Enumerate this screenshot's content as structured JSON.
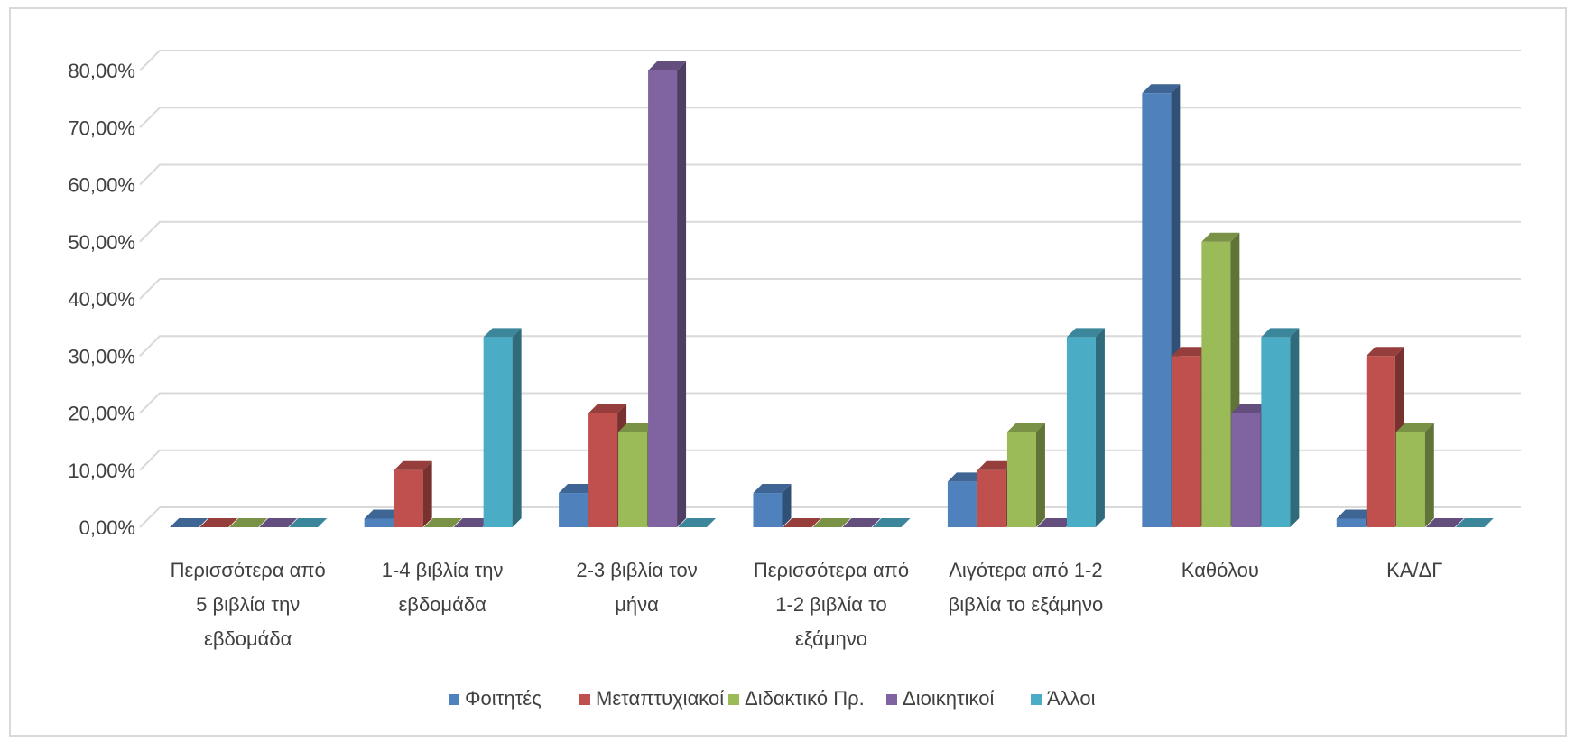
{
  "chart_data": {
    "type": "bar",
    "title": "",
    "xlabel": "",
    "ylabel": "",
    "ylim": [
      0,
      0.8
    ],
    "y_tick_labels": [
      "0,00%",
      "10,00%",
      "20,00%",
      "30,00%",
      "40,00%",
      "50,00%",
      "60,00%",
      "70,00%",
      "80,00%"
    ],
    "grid": true,
    "legend_position": "bottom",
    "categories": [
      [
        "Περισσότερα από",
        "5 βιβλία την",
        "εβδομάδα"
      ],
      [
        "1-4 βιβλία την",
        "εβδομάδα"
      ],
      [
        "2-3 βιβλία τον",
        "μήνα"
      ],
      [
        "Περισσότερα από",
        "1-2 βιβλία το",
        "εξάμηνο"
      ],
      [
        "Λιγότερα από 1-2",
        "βιβλία το εξάμηνο"
      ],
      [
        "Καθόλου"
      ],
      [
        "ΚΑ/ΔΓ"
      ]
    ],
    "series": [
      {
        "name": "Φοιτητές",
        "color": "#4f81bd",
        "values": [
          0.0,
          0.015,
          0.06,
          0.06,
          0.08,
          0.76,
          0.015
        ]
      },
      {
        "name": "Μεταπτυχιακοί",
        "color": "#c0504d",
        "values": [
          0.0,
          0.1,
          0.2,
          0.0,
          0.1,
          0.3,
          0.3
        ]
      },
      {
        "name": "Διδακτικό Πρ.",
        "color": "#9bbb59",
        "values": [
          0.0,
          0.0,
          0.167,
          0.0,
          0.167,
          0.5,
          0.167
        ]
      },
      {
        "name": "Διοικητικοί",
        "color": "#8064a2",
        "values": [
          0.0,
          0.0,
          0.8,
          0.0,
          0.0,
          0.2,
          0.0
        ]
      },
      {
        "name": "Άλλοι",
        "color": "#4bacc6",
        "values": [
          0.0,
          0.333,
          0.0,
          0.0,
          0.333,
          0.333,
          0.0
        ]
      }
    ]
  }
}
